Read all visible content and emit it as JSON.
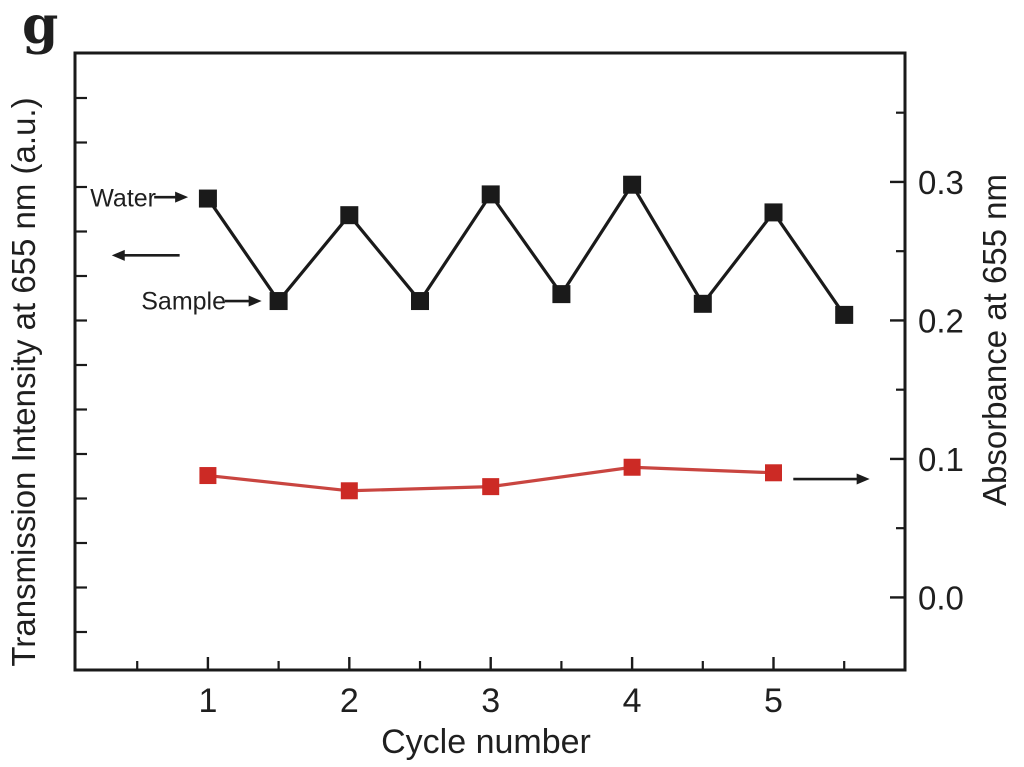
{
  "figure": {
    "panel_label": "g",
    "background_color": "#ffffff",
    "frame_color": "#1a1a1a"
  },
  "chart_data": {
    "type": "line",
    "title": "",
    "xlabel": "Cycle number",
    "x_axis": {
      "major_ticks": [
        1,
        2,
        3,
        4,
        5
      ],
      "major_tick_labels": [
        "1",
        "2",
        "3",
        "4",
        "5"
      ],
      "minor_ticks": [
        0.5,
        1.5,
        2.5,
        3.5,
        4.5,
        5.5
      ],
      "xlim": [
        0.06,
        5.93
      ]
    },
    "left_axis": {
      "label": "Transmission Intensity at 655 nm (a.u.)",
      "tick_labels": [],
      "note": "arbitrary units, unlabeled minor ticks only",
      "minor_tick_count": 13
    },
    "right_axis": {
      "label": "Absorbance at 655 nm",
      "major_ticks": [
        0.0,
        0.1,
        0.2,
        0.3
      ],
      "major_tick_labels": [
        "0.0",
        "0.1",
        "0.2",
        "0.3"
      ],
      "minor_ticks": [
        0.05,
        0.15,
        0.25,
        0.35
      ],
      "ylim": [
        -0.0524,
        0.3931
      ]
    },
    "grid": false,
    "series": [
      {
        "name": "transmission-water-sample-cycles",
        "axis": "left (values below read against right-axis scale for position)",
        "color": "#1a1a1a",
        "marker": "square",
        "marker_size": 18,
        "x": [
          1,
          1.5,
          2,
          2.5,
          3,
          3.5,
          4,
          4.5,
          5,
          5.5
        ],
        "values": [
          0.288,
          0.214,
          0.276,
          0.214,
          0.291,
          0.219,
          0.298,
          0.212,
          0.278,
          0.204
        ]
      },
      {
        "name": "absorbance",
        "axis": "right",
        "color": "#c94540",
        "marker_color": "#cc2a25",
        "marker": "square",
        "marker_size": 17,
        "x": [
          1,
          2,
          3,
          4,
          5
        ],
        "values": [
          0.088,
          0.077,
          0.08,
          0.094,
          0.09
        ]
      }
    ],
    "annotations": {
      "water_label": "Water",
      "sample_label": "Sample",
      "arrows": [
        {
          "name": "water-arrow",
          "x1": 0.62,
          "y1": 0.289,
          "x2": 0.86,
          "y2": 0.289,
          "color": "#1c1c1c"
        },
        {
          "name": "sample-arrow",
          "x1": 1.12,
          "y1": 0.214,
          "x2": 1.38,
          "y2": 0.214,
          "color": "#1c1c1c"
        },
        {
          "name": "left-axis-arrow",
          "x1": 0.8,
          "y1": 0.247,
          "x2": 0.32,
          "y2": 0.247,
          "color": "#1c1c1c"
        },
        {
          "name": "right-axis-arrow",
          "x1": 5.14,
          "y1": 0.0855,
          "x2": 5.68,
          "y2": 0.0855,
          "color": "#1c1c1c"
        }
      ]
    }
  }
}
